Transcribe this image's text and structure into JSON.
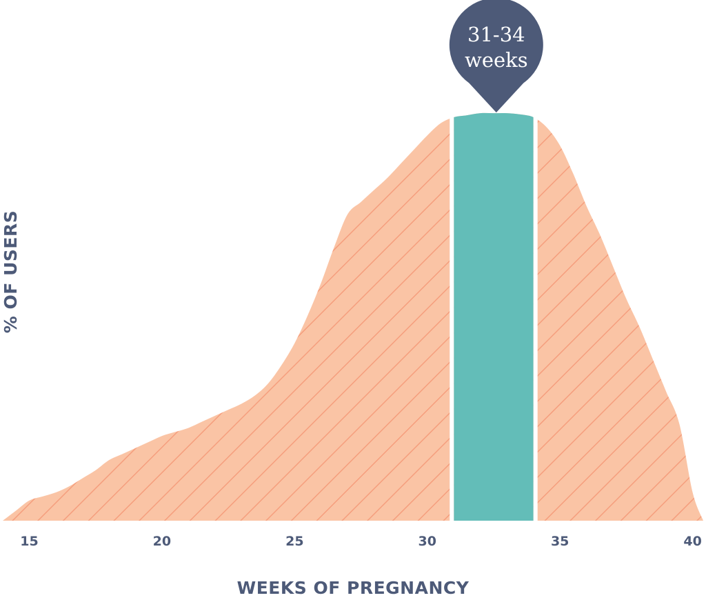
{
  "chart_data": {
    "type": "area",
    "title": "",
    "xlabel": "WEEKS OF PREGNANCY",
    "ylabel": "% OF USERS",
    "xlim": [
      14,
      40.4
    ],
    "ylim": [
      0,
      100
    ],
    "grid": false,
    "x_ticks": [
      15,
      20,
      25,
      30,
      35,
      40
    ],
    "series": [
      {
        "x": [
          14,
          14.5,
          15,
          15.5,
          16,
          16.5,
          17,
          17.5,
          18,
          18.5,
          19,
          19.5,
          20,
          20.5,
          21,
          21.5,
          22,
          22.5,
          23,
          23.5,
          24,
          24.5,
          25,
          25.5,
          26,
          26.5,
          27,
          27.5,
          28,
          28.5,
          29,
          29.5,
          30,
          30.5,
          31,
          31.5,
          32,
          32.5,
          33,
          33.5,
          34,
          34.5,
          35,
          35.5,
          36,
          36.5,
          37,
          37.5,
          38,
          38.5,
          39,
          39.5,
          40,
          40.4
        ],
        "values": [
          0,
          2.5,
          5,
          6,
          7,
          8.5,
          10.5,
          12.5,
          15,
          16.5,
          18,
          19.5,
          21,
          22,
          23,
          24.5,
          26,
          27.5,
          29,
          31,
          34,
          38.5,
          44,
          51,
          59,
          68,
          76,
          79,
          82,
          85,
          88.5,
          92,
          95.5,
          98.5,
          100,
          100.5,
          101,
          101,
          101,
          100.7,
          100,
          97.5,
          93,
          86,
          78,
          71,
          63,
          55,
          48,
          40,
          32,
          24,
          7,
          0
        ]
      }
    ],
    "highlight": {
      "label": "31-34\nweeks",
      "label_line1": "31-34",
      "label_line2": "weeks",
      "x_start": 31,
      "x_end": 34,
      "peak_x": 32.6
    },
    "colors": {
      "area": "#fac4a5",
      "hatch": "#f59e7d",
      "highlight": "#63bdb8",
      "callout": "#4d5a78",
      "text": "#4d5a78"
    }
  }
}
